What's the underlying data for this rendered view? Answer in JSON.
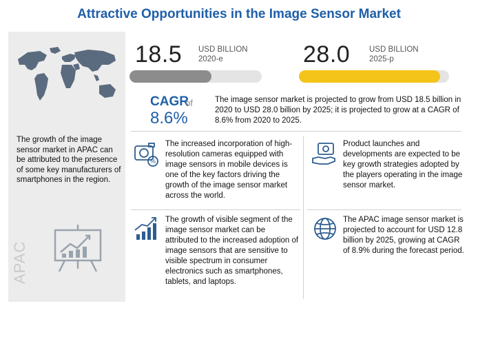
{
  "title": "Attractive Opportunities in the Image Sensor Market",
  "left_panel": {
    "text": "The growth of the image sensor market in APAC can be attributed to the presence of some key manufacturers of smartphones in the region.",
    "region_label": "APAC",
    "map_icon": "world-map-icon",
    "presentation_icon": "presentation-board-icon"
  },
  "metric_2020": {
    "value": "18.5",
    "unit": "USD BILLION",
    "period": "2020-e",
    "bar_fill_fraction": 0.62,
    "color": "#8c8c8c"
  },
  "metric_2025": {
    "value": "28.0",
    "unit": "USD BILLION",
    "period": "2025-p",
    "bar_fill_fraction": 0.94,
    "color": "#f5c41a"
  },
  "cagr": {
    "label": "CAGR",
    "of": "of",
    "value": "8.6%"
  },
  "summary": "The image sensor market is projected to grow from USD 18.5 billion in 2020 to USD 28.0 billion by 2025; it is projected to grow at a CAGR of 8.6% from 2020 to 2025.",
  "cards": [
    {
      "icon": "camera-percent-icon",
      "text": "The increased incorporation of high-resolution cameras equipped with image sensors in mobile devices is one of the key factors driving the growth of the image sensor market across the world."
    },
    {
      "icon": "money-hand-icon",
      "text": "Product launches and developments are expected to be key growth strategies adopted by the players operating in the image sensor market."
    },
    {
      "icon": "growth-chart-icon",
      "text": "The growth of visible segment of the image sensor market can be attributed to the increased adoption of image sensors that are sensitive to visible spectrum in consumer electronics such as smartphones, tablets, and laptops."
    },
    {
      "icon": "globe-icon",
      "text": "The APAC image sensor market is projected to account for USD 12.8 billion by 2025, growing at CAGR of 8.9% during the forecast period."
    }
  ]
}
